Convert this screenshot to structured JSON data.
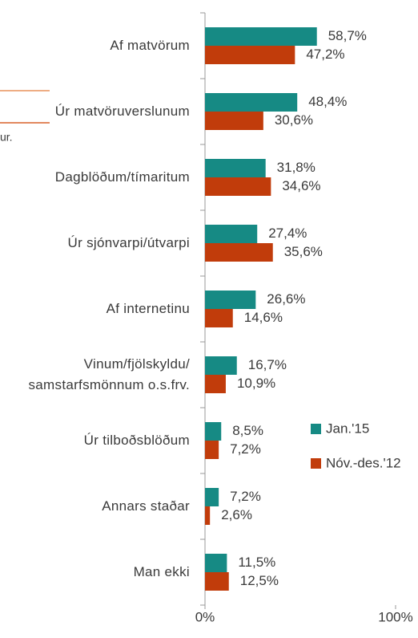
{
  "chart_data": {
    "type": "bar",
    "orientation": "horizontal",
    "categories": [
      "Af matvörum",
      "Úr matvöruverslunum",
      "Dagblöðum/tímaritum",
      "Úr sjónvarpi/útvarpi",
      "Af internetinu",
      "Vinum/fjölskyldu/\nsamstarfsmönnum o.s.frv.",
      "Úr tilboðsblöðum",
      "Annars staðar",
      "Man ekki"
    ],
    "series": [
      {
        "name": "Jan.'15",
        "color": "#168a84",
        "values": [
          58.7,
          48.4,
          31.8,
          27.4,
          26.6,
          16.7,
          8.5,
          7.2,
          11.5
        ],
        "value_labels": [
          "58,7%",
          "48,4%",
          "31,8%",
          "27,4%",
          "26,6%",
          "16,7%",
          "8,5%",
          "7,2%",
          "11,5%"
        ]
      },
      {
        "name": "Nóv.-des.'12",
        "color": "#c13c0b",
        "values": [
          47.2,
          30.6,
          34.6,
          35.6,
          14.6,
          10.9,
          7.2,
          2.6,
          12.5
        ],
        "value_labels": [
          "47,2%",
          "30,6%",
          "34,6%",
          "35,6%",
          "14,6%",
          "10,9%",
          "7,2%",
          "2,6%",
          "12,5%"
        ]
      }
    ],
    "xlim": [
      0,
      100
    ],
    "xticks": [
      {
        "value": 0,
        "label": "0%"
      },
      {
        "value": 100,
        "label": "100%"
      }
    ],
    "legend": "right",
    "annotation": "ur."
  }
}
